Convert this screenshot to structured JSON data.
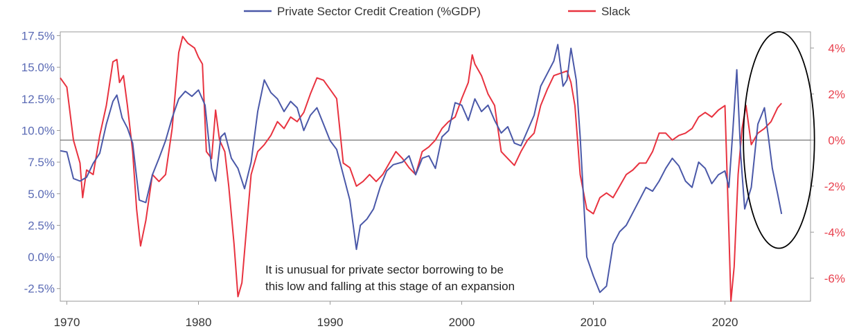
{
  "chart_data": {
    "type": "line",
    "title": "",
    "legend": {
      "placement": "top-center",
      "entries": [
        {
          "name": "Private Sector Credit Creation (%GDP)",
          "color": "#4a58a8"
        },
        {
          "name": "Slack",
          "color": "#e8323f"
        }
      ]
    },
    "x_axis": {
      "range": [
        1969.5,
        2026.5
      ],
      "ticks": [
        1970,
        1980,
        1990,
        2000,
        2010,
        2020
      ],
      "tick_labels": [
        "1970",
        "1980",
        "1990",
        "2000",
        "2010",
        "2020"
      ]
    },
    "y_left": {
      "range": [
        -3.5,
        17.8
      ],
      "ticks": [
        -2.5,
        0,
        2.5,
        5,
        7.5,
        10,
        12.5,
        15,
        17.5
      ],
      "tick_labels": [
        "-2.5%",
        "0.0%",
        "2.5%",
        "5.0%",
        "7.5%",
        "10.0%",
        "12.5%",
        "15.0%",
        "17.5%"
      ],
      "color": "#5b6bb5"
    },
    "y_right": {
      "range": [
        -7,
        4.7
      ],
      "ticks": [
        -6,
        -4,
        -2,
        0,
        2,
        4
      ],
      "tick_labels": [
        "-6%",
        "-4%",
        "-2%",
        "0%",
        "2%",
        "4%"
      ],
      "color": "#e8404d"
    },
    "zero_line": {
      "axis": "right",
      "value": 0
    },
    "series": [
      {
        "name": "Private Sector Credit Creation (%GDP)",
        "axis": "left",
        "color": "#4a58a8",
        "points": [
          [
            1969.5,
            8.4
          ],
          [
            1970.0,
            8.3
          ],
          [
            1970.5,
            6.2
          ],
          [
            1971.0,
            6.0
          ],
          [
            1971.5,
            6.3
          ],
          [
            1972.0,
            7.4
          ],
          [
            1972.5,
            8.2
          ],
          [
            1973.0,
            10.5
          ],
          [
            1973.5,
            12.3
          ],
          [
            1973.8,
            12.8
          ],
          [
            1974.2,
            11.0
          ],
          [
            1974.6,
            10.2
          ],
          [
            1975.0,
            9.0
          ],
          [
            1975.5,
            4.5
          ],
          [
            1976.0,
            4.3
          ],
          [
            1976.5,
            6.5
          ],
          [
            1977.0,
            7.8
          ],
          [
            1977.5,
            9.2
          ],
          [
            1978.0,
            11.0
          ],
          [
            1978.5,
            12.5
          ],
          [
            1979.0,
            13.1
          ],
          [
            1979.5,
            12.7
          ],
          [
            1980.0,
            13.2
          ],
          [
            1980.5,
            12.0
          ],
          [
            1981.0,
            7.0
          ],
          [
            1981.3,
            6.0
          ],
          [
            1981.7,
            9.5
          ],
          [
            1982.0,
            9.8
          ],
          [
            1982.5,
            7.8
          ],
          [
            1983.0,
            7.0
          ],
          [
            1983.5,
            5.4
          ],
          [
            1984.0,
            7.5
          ],
          [
            1984.5,
            11.5
          ],
          [
            1985.0,
            14.0
          ],
          [
            1985.5,
            13.0
          ],
          [
            1986.0,
            12.5
          ],
          [
            1986.5,
            11.5
          ],
          [
            1987.0,
            12.3
          ],
          [
            1987.5,
            11.8
          ],
          [
            1988.0,
            10.0
          ],
          [
            1988.5,
            11.2
          ],
          [
            1989.0,
            11.8
          ],
          [
            1989.5,
            10.5
          ],
          [
            1990.0,
            9.2
          ],
          [
            1990.5,
            8.5
          ],
          [
            1991.0,
            6.5
          ],
          [
            1991.5,
            4.5
          ],
          [
            1992.0,
            0.6
          ],
          [
            1992.3,
            2.5
          ],
          [
            1992.8,
            3.0
          ],
          [
            1993.3,
            3.8
          ],
          [
            1993.8,
            5.5
          ],
          [
            1994.3,
            6.8
          ],
          [
            1994.8,
            7.3
          ],
          [
            1995.5,
            7.5
          ],
          [
            1996.0,
            8.0
          ],
          [
            1996.5,
            6.5
          ],
          [
            1997.0,
            7.8
          ],
          [
            1997.5,
            8.0
          ],
          [
            1998.0,
            7.0
          ],
          [
            1998.5,
            9.5
          ],
          [
            1999.0,
            10.0
          ],
          [
            1999.5,
            12.2
          ],
          [
            2000.0,
            12.0
          ],
          [
            2000.5,
            10.8
          ],
          [
            2001.0,
            12.5
          ],
          [
            2001.5,
            11.5
          ],
          [
            2002.0,
            12.0
          ],
          [
            2002.5,
            10.8
          ],
          [
            2003.0,
            9.8
          ],
          [
            2003.5,
            10.3
          ],
          [
            2004.0,
            9.0
          ],
          [
            2004.5,
            8.8
          ],
          [
            2005.0,
            10.0
          ],
          [
            2005.5,
            11.2
          ],
          [
            2006.0,
            13.5
          ],
          [
            2006.5,
            14.5
          ],
          [
            2007.0,
            15.5
          ],
          [
            2007.3,
            16.8
          ],
          [
            2007.7,
            13.5
          ],
          [
            2008.0,
            14.0
          ],
          [
            2008.3,
            16.5
          ],
          [
            2008.7,
            14.0
          ],
          [
            2009.0,
            9.5
          ],
          [
            2009.5,
            0.0
          ],
          [
            2010.0,
            -1.5
          ],
          [
            2010.5,
            -2.8
          ],
          [
            2011.0,
            -2.3
          ],
          [
            2011.5,
            1.0
          ],
          [
            2012.0,
            2.0
          ],
          [
            2012.5,
            2.5
          ],
          [
            2013.0,
            3.5
          ],
          [
            2013.5,
            4.5
          ],
          [
            2014.0,
            5.5
          ],
          [
            2014.5,
            5.2
          ],
          [
            2015.0,
            6.0
          ],
          [
            2015.5,
            7.0
          ],
          [
            2016.0,
            7.8
          ],
          [
            2016.5,
            7.2
          ],
          [
            2017.0,
            6.0
          ],
          [
            2017.5,
            5.5
          ],
          [
            2018.0,
            7.5
          ],
          [
            2018.5,
            7.0
          ],
          [
            2019.0,
            5.8
          ],
          [
            2019.5,
            6.5
          ],
          [
            2020.0,
            6.8
          ],
          [
            2020.3,
            5.5
          ],
          [
            2020.6,
            10.0
          ],
          [
            2020.9,
            14.8
          ],
          [
            2021.2,
            8.0
          ],
          [
            2021.5,
            3.8
          ],
          [
            2022.0,
            5.5
          ],
          [
            2022.5,
            10.5
          ],
          [
            2023.0,
            11.8
          ],
          [
            2023.3,
            9.5
          ],
          [
            2023.6,
            7.0
          ],
          [
            2024.0,
            5.0
          ],
          [
            2024.3,
            3.4
          ]
        ]
      },
      {
        "name": "Slack",
        "axis": "right",
        "color": "#e8323f",
        "points": [
          [
            1969.5,
            2.7
          ],
          [
            1970.0,
            2.3
          ],
          [
            1970.5,
            0.0
          ],
          [
            1971.0,
            -1.0
          ],
          [
            1971.2,
            -2.5
          ],
          [
            1971.5,
            -1.3
          ],
          [
            1972.0,
            -1.5
          ],
          [
            1972.5,
            0.2
          ],
          [
            1973.0,
            1.5
          ],
          [
            1973.5,
            3.4
          ],
          [
            1973.8,
            3.5
          ],
          [
            1974.0,
            2.5
          ],
          [
            1974.3,
            2.8
          ],
          [
            1974.6,
            1.5
          ],
          [
            1975.0,
            -0.5
          ],
          [
            1975.3,
            -3.0
          ],
          [
            1975.6,
            -4.6
          ],
          [
            1976.0,
            -3.5
          ],
          [
            1976.5,
            -1.5
          ],
          [
            1977.0,
            -1.8
          ],
          [
            1977.5,
            -1.5
          ],
          [
            1978.0,
            0.5
          ],
          [
            1978.5,
            3.8
          ],
          [
            1978.8,
            4.5
          ],
          [
            1979.2,
            4.2
          ],
          [
            1979.7,
            4.0
          ],
          [
            1980.0,
            3.6
          ],
          [
            1980.3,
            3.3
          ],
          [
            1980.6,
            -0.5
          ],
          [
            1981.0,
            -0.8
          ],
          [
            1981.3,
            1.3
          ],
          [
            1981.6,
            0.0
          ],
          [
            1982.0,
            -0.5
          ],
          [
            1982.3,
            -2.0
          ],
          [
            1982.7,
            -4.5
          ],
          [
            1983.0,
            -6.8
          ],
          [
            1983.3,
            -6.2
          ],
          [
            1983.7,
            -3.5
          ],
          [
            1984.0,
            -1.5
          ],
          [
            1984.5,
            -0.5
          ],
          [
            1985.0,
            -0.2
          ],
          [
            1985.5,
            0.2
          ],
          [
            1986.0,
            0.8
          ],
          [
            1986.5,
            0.5
          ],
          [
            1987.0,
            1.0
          ],
          [
            1987.5,
            0.8
          ],
          [
            1988.0,
            1.2
          ],
          [
            1988.5,
            2.0
          ],
          [
            1989.0,
            2.7
          ],
          [
            1989.5,
            2.6
          ],
          [
            1990.0,
            2.2
          ],
          [
            1990.5,
            1.8
          ],
          [
            1991.0,
            -1.0
          ],
          [
            1991.5,
            -1.2
          ],
          [
            1992.0,
            -2.0
          ],
          [
            1992.5,
            -1.8
          ],
          [
            1993.0,
            -1.5
          ],
          [
            1993.5,
            -1.8
          ],
          [
            1994.0,
            -1.5
          ],
          [
            1994.5,
            -1.0
          ],
          [
            1995.0,
            -0.5
          ],
          [
            1995.5,
            -0.8
          ],
          [
            1996.0,
            -1.2
          ],
          [
            1996.5,
            -1.5
          ],
          [
            1997.0,
            -0.5
          ],
          [
            1997.5,
            -0.3
          ],
          [
            1998.0,
            0.0
          ],
          [
            1998.5,
            0.5
          ],
          [
            1999.0,
            0.8
          ],
          [
            1999.5,
            1.0
          ],
          [
            2000.0,
            1.8
          ],
          [
            2000.5,
            2.5
          ],
          [
            2000.8,
            3.7
          ],
          [
            2001.0,
            3.3
          ],
          [
            2001.5,
            2.8
          ],
          [
            2002.0,
            2.0
          ],
          [
            2002.5,
            1.5
          ],
          [
            2003.0,
            -0.5
          ],
          [
            2003.5,
            -0.8
          ],
          [
            2004.0,
            -1.1
          ],
          [
            2004.5,
            -0.5
          ],
          [
            2005.0,
            0.0
          ],
          [
            2005.5,
            0.3
          ],
          [
            2006.0,
            1.5
          ],
          [
            2006.5,
            2.2
          ],
          [
            2007.0,
            2.8
          ],
          [
            2007.5,
            2.9
          ],
          [
            2008.0,
            3.0
          ],
          [
            2008.3,
            2.5
          ],
          [
            2008.6,
            1.5
          ],
          [
            2009.0,
            -1.5
          ],
          [
            2009.5,
            -3.0
          ],
          [
            2010.0,
            -3.2
          ],
          [
            2010.5,
            -2.5
          ],
          [
            2011.0,
            -2.3
          ],
          [
            2011.5,
            -2.5
          ],
          [
            2012.0,
            -2.0
          ],
          [
            2012.5,
            -1.5
          ],
          [
            2013.0,
            -1.3
          ],
          [
            2013.5,
            -1.0
          ],
          [
            2014.0,
            -1.0
          ],
          [
            2014.5,
            -0.5
          ],
          [
            2015.0,
            0.3
          ],
          [
            2015.5,
            0.3
          ],
          [
            2016.0,
            0.0
          ],
          [
            2016.5,
            0.2
          ],
          [
            2017.0,
            0.3
          ],
          [
            2017.5,
            0.5
          ],
          [
            2018.0,
            1.0
          ],
          [
            2018.5,
            1.2
          ],
          [
            2019.0,
            1.0
          ],
          [
            2019.5,
            1.3
          ],
          [
            2020.0,
            1.5
          ],
          [
            2020.3,
            -4.0
          ],
          [
            2020.45,
            -7.0
          ],
          [
            2020.7,
            -5.5
          ],
          [
            2021.0,
            -1.5
          ],
          [
            2021.3,
            0.5
          ],
          [
            2021.6,
            1.5
          ],
          [
            2022.0,
            -0.2
          ],
          [
            2022.5,
            0.3
          ],
          [
            2023.0,
            0.5
          ],
          [
            2023.5,
            0.8
          ],
          [
            2024.0,
            1.4
          ],
          [
            2024.3,
            1.6
          ]
        ]
      }
    ],
    "annotation": {
      "lines": [
        "It is unusual for private sector borrowing to be",
        "this low and falling at this stage of an expansion"
      ]
    },
    "highlight_ellipse": {
      "center": [
        2024.1,
        0.0
      ],
      "rx_years": 2.7,
      "ry_right": 4.7,
      "color": "#000000"
    }
  }
}
